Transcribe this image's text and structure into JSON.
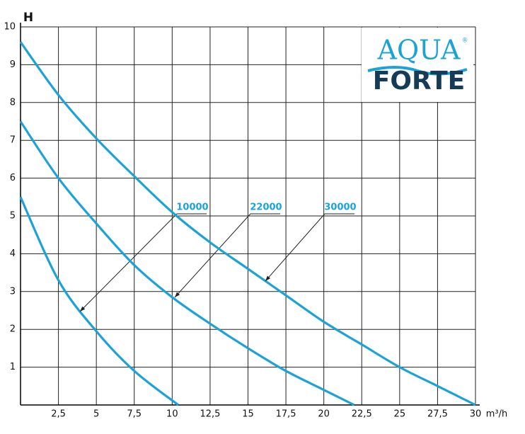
{
  "chart_data": {
    "type": "line",
    "ylabel": "H",
    "xlabel": "m³/h",
    "logo": {
      "top": "AQUA",
      "bottom": "FORTE",
      "mark": "®"
    },
    "xlim": [
      0,
      30
    ],
    "ylim": [
      0,
      10
    ],
    "xticks": [
      {
        "value": 2.5,
        "label": "2,5"
      },
      5,
      {
        "value": 7.5,
        "label": "7,5"
      },
      10,
      {
        "value": 12.5,
        "label": "12,5"
      },
      15,
      {
        "value": 17.5,
        "label": "17,5"
      },
      20,
      {
        "value": 22.5,
        "label": "22,5"
      },
      25,
      {
        "value": 27.5,
        "label": "27,5"
      },
      30
    ],
    "yticks": [
      1,
      2,
      3,
      4,
      5,
      6,
      7,
      8,
      9,
      10
    ],
    "grid": true,
    "series": [
      {
        "name": "10000",
        "color": "#1ba3d6",
        "x": [
          0,
          2.5,
          5,
          7.5,
          10.4
        ],
        "values": [
          5.5,
          3.3,
          1.95,
          0.9,
          0
        ]
      },
      {
        "name": "22000",
        "color": "#1ba3d6",
        "x": [
          0,
          2.5,
          5,
          7.5,
          10,
          12.5,
          15,
          17.5,
          20,
          22
        ],
        "values": [
          7.5,
          6.0,
          4.8,
          3.7,
          2.85,
          2.15,
          1.5,
          0.9,
          0.4,
          0
        ]
      },
      {
        "name": "30000",
        "color": "#1ba3d6",
        "x": [
          0,
          2.5,
          5,
          7.5,
          10,
          12.5,
          15,
          17.5,
          20,
          22.5,
          25,
          27.5,
          30
        ],
        "values": [
          9.6,
          8.2,
          7.05,
          6.05,
          5.1,
          4.3,
          3.6,
          2.9,
          2.2,
          1.6,
          1.0,
          0.5,
          0
        ]
      }
    ]
  }
}
